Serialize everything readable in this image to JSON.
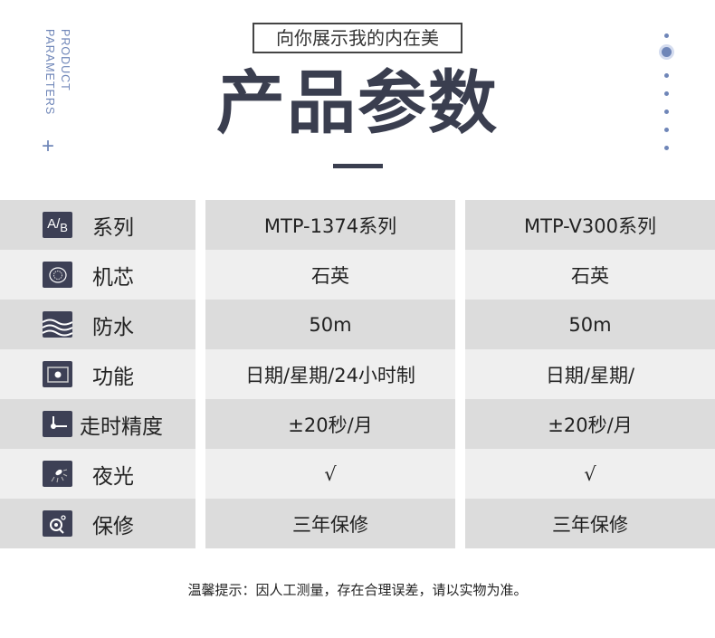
{
  "header": {
    "side_text_line1": "PRODUCT",
    "side_text_line2": "PARAMETERS",
    "plus": "+",
    "subtitle": "向你展示我的内在美",
    "title": "产品参数"
  },
  "pager": {
    "count": 7,
    "active_index": 1
  },
  "table": {
    "rows": [
      {
        "icon": "ab-series-icon",
        "label": "系列",
        "col1": "MTP-1374系列",
        "col2": "MTP-V300系列"
      },
      {
        "icon": "movement-icon",
        "label": "机芯",
        "col1": "石英",
        "col2": "石英"
      },
      {
        "icon": "water-waves-icon",
        "label": "防水",
        "col1": "50m",
        "col2": "50m"
      },
      {
        "icon": "function-frame-icon",
        "label": "功能",
        "col1": "日期/星期/24小时制",
        "col2": "日期/星期/"
      },
      {
        "icon": "clock-hands-icon",
        "label": "走时精度",
        "col1": "±20秒/月",
        "col2": "±20秒/月"
      },
      {
        "icon": "luminous-icon",
        "label": "夜光",
        "col1": "√",
        "col2": "√"
      },
      {
        "icon": "warranty-icon",
        "label": "保修",
        "col1": "三年保修",
        "col2": "三年保修"
      }
    ]
  },
  "footer": {
    "note": "温馨提示：因人工测量，存在合理误差，请以实物为准。"
  },
  "colors": {
    "accent": "#6f86b8",
    "title": "#3a3e4f",
    "row_dark": "#dcdcdc",
    "row_light": "#efefef",
    "icon_bg": "#3d4055"
  }
}
